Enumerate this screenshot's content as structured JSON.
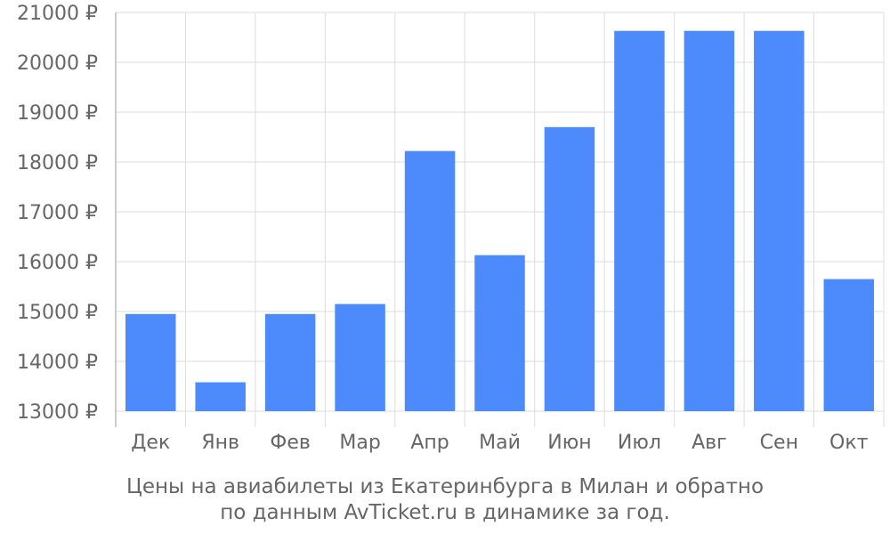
{
  "chart_data": {
    "type": "bar",
    "categories": [
      "Дек",
      "Янв",
      "Фев",
      "Мар",
      "Апр",
      "Май",
      "Июн",
      "Июл",
      "Авг",
      "Сен",
      "Окт"
    ],
    "values": [
      14950,
      13580,
      14950,
      15150,
      18220,
      16130,
      18700,
      20630,
      20630,
      20630,
      15650
    ],
    "ylim": [
      13000,
      21000
    ],
    "yticks": [
      13000,
      14000,
      15000,
      16000,
      17000,
      18000,
      19000,
      20000,
      21000
    ],
    "ytick_labels": [
      "13000 ₽",
      "14000 ₽",
      "15000 ₽",
      "16000 ₽",
      "17000 ₽",
      "18000 ₽",
      "19000 ₽",
      "20000 ₽",
      "21000 ₽"
    ],
    "grid": true,
    "bar_color": "#4d8afc",
    "grid_color": "#dddddd",
    "text_color": "#666666"
  },
  "caption": {
    "line1": "Цены на авиабилеты из Екатеринбурга в Милан и обратно",
    "line2": "по данным AvTicket.ru в динамике за год."
  }
}
